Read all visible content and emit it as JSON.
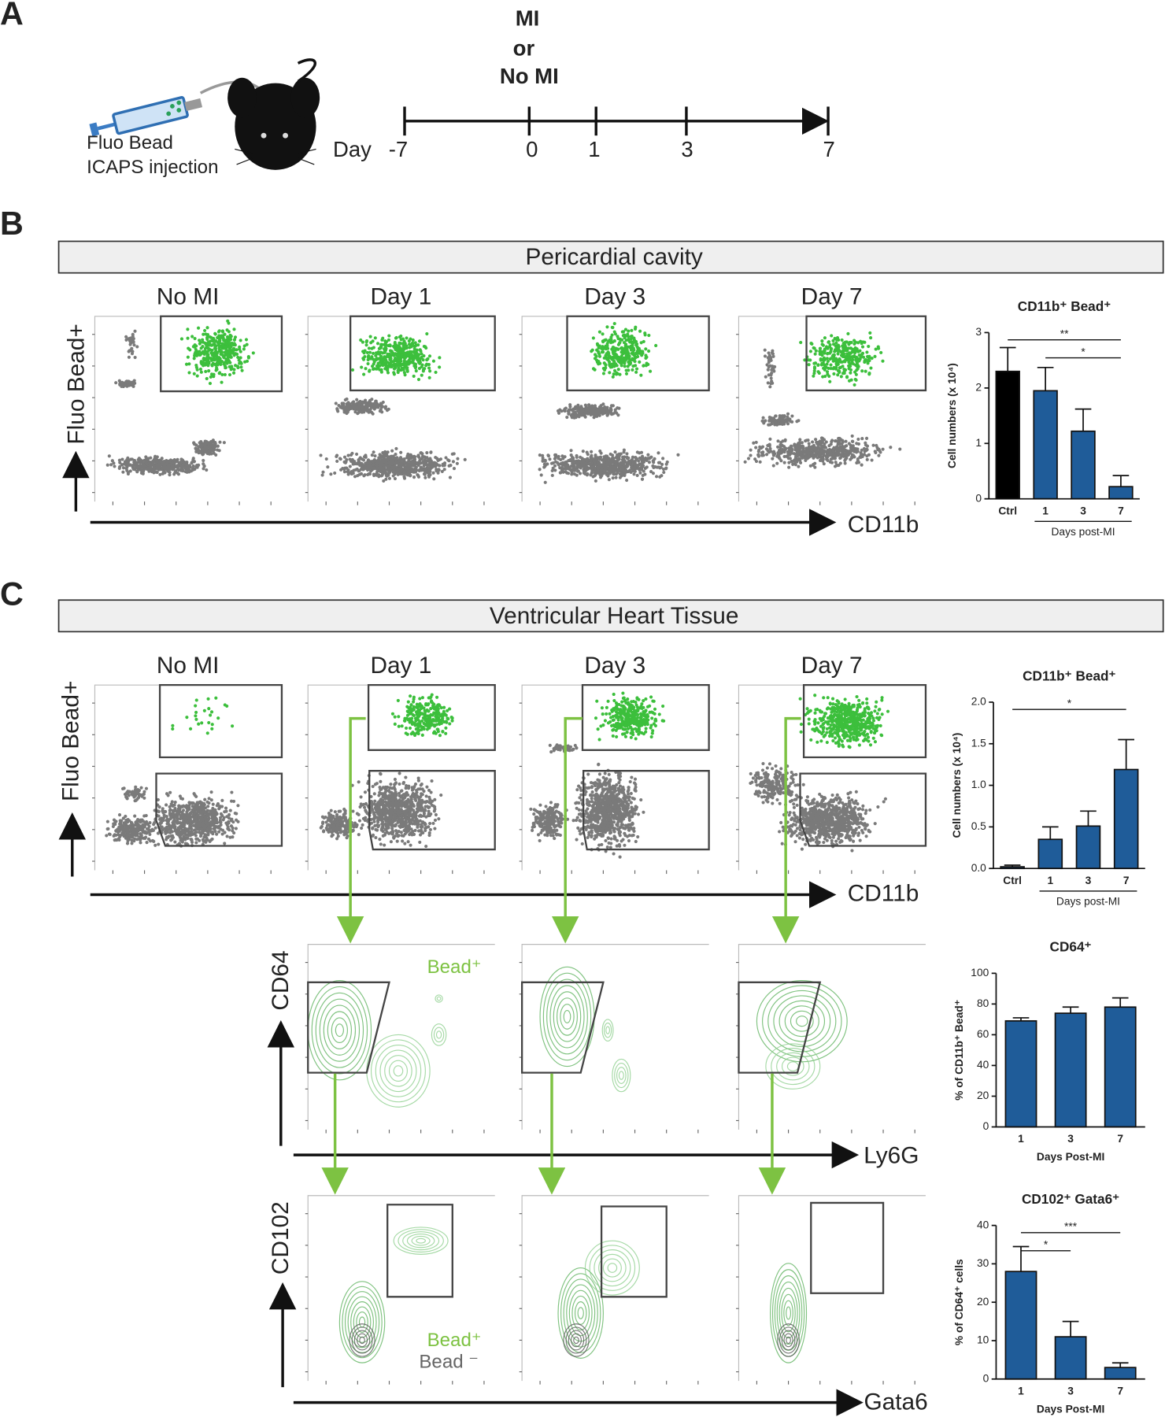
{
  "panel_labels": [
    "A",
    "B",
    "C"
  ],
  "timeline": {
    "event": [
      "MI",
      "or",
      "No MI"
    ],
    "axis_label": "Day",
    "days": [
      "-7",
      "0",
      "1",
      "3",
      "7"
    ]
  },
  "injection": [
    "Fluo Bead",
    "ICAPS injection"
  ],
  "panel_b": {
    "header": "Pericardial cavity",
    "plot_titles": [
      "No MI",
      "Day 1",
      "Day 3",
      "Day 7"
    ],
    "y_axis": "Fluo Bead+",
    "x_axis": "CD11b"
  },
  "panel_c": {
    "header": "Ventricular Heart Tissue",
    "plot_titles": [
      "No MI",
      "Day 1",
      "Day 3",
      "Day 7"
    ],
    "y_axis": "Fluo Bead+",
    "x_axis": "CD11b",
    "row2": {
      "y_axis": "CD64",
      "x_axis": "Ly6G",
      "legend": "Bead⁺"
    },
    "row3": {
      "y_axis": "CD102",
      "x_axis": "Gata6",
      "legend": [
        "Bead⁺",
        "Bead ⁻"
      ]
    }
  },
  "chart_data": [
    {
      "type": "bar",
      "title": "CD11b⁺ Bead⁺",
      "ylabel": "Cell numbers (x 10⁴)",
      "xlabel": "Days post-MI",
      "categories": [
        "Ctrl",
        "1",
        "3",
        "7"
      ],
      "values": [
        2.3,
        1.95,
        1.22,
        0.22
      ],
      "errors": [
        0.43,
        0.42,
        0.4,
        0.2
      ],
      "colors": [
        "#000000",
        "#1f5c99",
        "#1f5c99",
        "#1f5c99"
      ],
      "ylim": [
        0,
        3
      ],
      "yticks": [
        0,
        1,
        2,
        3
      ],
      "significance": [
        {
          "from": "Ctrl",
          "to": "7",
          "label": "**"
        },
        {
          "from": "1",
          "to": "7",
          "label": "*"
        }
      ]
    },
    {
      "type": "bar",
      "title": "CD11b⁺ Bead⁺",
      "ylabel": "Cell numbers (x 10⁴)",
      "xlabel": "Days post-MI",
      "categories": [
        "Ctrl",
        "1",
        "3",
        "7"
      ],
      "values": [
        0.02,
        0.35,
        0.51,
        1.19
      ],
      "errors": [
        0.02,
        0.15,
        0.18,
        0.36
      ],
      "color": "#1f5c99",
      "ylim": [
        0,
        2
      ],
      "yticks": [
        {
          "value": 0,
          "label": "0.0"
        },
        {
          "value": 0.5,
          "label": "0.5"
        },
        {
          "value": 1,
          "label": "1.0"
        },
        {
          "value": 1.5,
          "label": "1.5"
        },
        {
          "value": 2,
          "label": "2.0"
        }
      ],
      "significance": [
        {
          "from": "Ctrl",
          "to": "7",
          "label": "*"
        }
      ]
    },
    {
      "type": "bar",
      "title": "CD64⁺",
      "ylabel": "% of CD11b⁺ Bead⁺",
      "xlabel": "Days Post-MI",
      "categories": [
        "1",
        "3",
        "7"
      ],
      "values": [
        69,
        74,
        78
      ],
      "errors": [
        2,
        4,
        6
      ],
      "color": "#1f5c99",
      "ylim": [
        0,
        100
      ],
      "yticks": [
        0,
        20,
        40,
        60,
        80,
        100
      ],
      "significance": []
    },
    {
      "type": "bar",
      "title": "CD102⁺ Gata6⁺",
      "ylabel": "% of CD64⁺ cells",
      "xlabel": "Days Post-MI",
      "categories": [
        "1",
        "3",
        "7"
      ],
      "values": [
        28,
        11,
        3
      ],
      "errors": [
        6.5,
        4,
        1.2
      ],
      "color": "#1f5c99",
      "ylim": [
        0,
        40
      ],
      "yticks": [
        0,
        10,
        20,
        30,
        40
      ],
      "significance": [
        {
          "from": "1",
          "to": "7",
          "label": "***"
        },
        {
          "from": "1",
          "to": "3",
          "label": "*"
        }
      ]
    }
  ]
}
